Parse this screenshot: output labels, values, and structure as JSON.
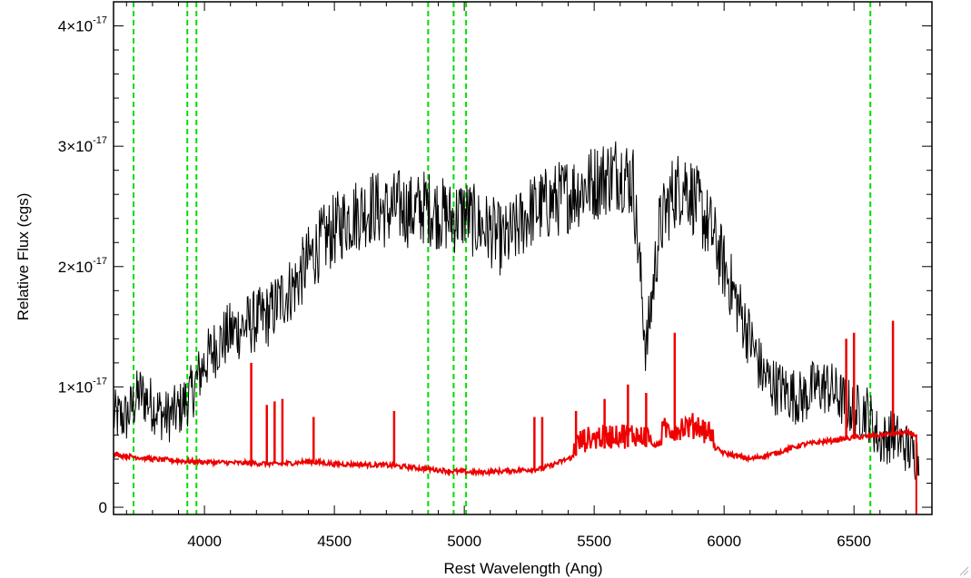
{
  "chart_data": {
    "type": "line",
    "title": "",
    "xlabel": "Rest Wavelength (Ang)",
    "ylabel": "Relative Flux (cgs)",
    "xlim": [
      3650,
      6800
    ],
    "ylim": [
      0,
      4.2e-17
    ],
    "x_ticks": [
      4000,
      4500,
      5000,
      5500,
      6000,
      6500
    ],
    "x_tick_labels": [
      "4000",
      "4500",
      "5000",
      "5500",
      "6000",
      "6500"
    ],
    "y_ticks": [
      0,
      1e-17,
      2e-17,
      3e-17,
      4e-17
    ],
    "y_tick_labels": [
      {
        "mantissa": "0",
        "exponent": ""
      },
      {
        "mantissa": "1×10",
        "exponent": "-17"
      },
      {
        "mantissa": "2×10",
        "exponent": "-17"
      },
      {
        "mantissa": "3×10",
        "exponent": "-17"
      },
      {
        "mantissa": "4×10",
        "exponent": "-17"
      }
    ],
    "grid": false,
    "reference_lines": {
      "color": "#00dd00",
      "style": "dashed",
      "x": [
        3727,
        3934,
        3969,
        4861,
        4959,
        5007,
        6563
      ]
    },
    "series": [
      {
        "color": "#000000",
        "noise": 0.32,
        "points": [
          [
            3650,
            0.75
          ],
          [
            3700,
            0.75
          ],
          [
            3750,
            0.95
          ],
          [
            3800,
            0.85
          ],
          [
            3850,
            0.75
          ],
          [
            3900,
            0.8
          ],
          [
            3950,
            0.95
          ],
          [
            4000,
            1.2
          ],
          [
            4050,
            1.35
          ],
          [
            4100,
            1.45
          ],
          [
            4150,
            1.5
          ],
          [
            4200,
            1.55
          ],
          [
            4250,
            1.6
          ],
          [
            4300,
            1.75
          ],
          [
            4350,
            1.85
          ],
          [
            4400,
            2.05
          ],
          [
            4450,
            2.2
          ],
          [
            4500,
            2.3
          ],
          [
            4550,
            2.4
          ],
          [
            4600,
            2.45
          ],
          [
            4650,
            2.5
          ],
          [
            4700,
            2.45
          ],
          [
            4750,
            2.5
          ],
          [
            4800,
            2.45
          ],
          [
            4850,
            2.5
          ],
          [
            4900,
            2.45
          ],
          [
            4950,
            2.4
          ],
          [
            5000,
            2.45
          ],
          [
            5050,
            2.35
          ],
          [
            5100,
            2.3
          ],
          [
            5150,
            2.2
          ],
          [
            5200,
            2.3
          ],
          [
            5250,
            2.45
          ],
          [
            5300,
            2.5
          ],
          [
            5350,
            2.55
          ],
          [
            5400,
            2.6
          ],
          [
            5450,
            2.65
          ],
          [
            5500,
            2.7
          ],
          [
            5550,
            2.75
          ],
          [
            5600,
            2.8
          ],
          [
            5650,
            2.7
          ],
          [
            5700,
            1.3
          ],
          [
            5750,
            2.3
          ],
          [
            5800,
            2.6
          ],
          [
            5850,
            2.7
          ],
          [
            5900,
            2.5
          ],
          [
            5950,
            2.3
          ],
          [
            6000,
            2.0
          ],
          [
            6050,
            1.7
          ],
          [
            6100,
            1.4
          ],
          [
            6150,
            1.1
          ],
          [
            6200,
            1.0
          ],
          [
            6250,
            0.95
          ],
          [
            6300,
            0.9
          ],
          [
            6350,
            1.0
          ],
          [
            6400,
            1.0
          ],
          [
            6450,
            0.9
          ],
          [
            6500,
            0.8
          ],
          [
            6550,
            0.8
          ],
          [
            6600,
            0.55
          ],
          [
            6650,
            0.6
          ],
          [
            6700,
            0.5
          ],
          [
            6750,
            0.4
          ]
        ]
      },
      {
        "color": "#ee0000",
        "noise": 0.02,
        "points": [
          [
            3650,
            0.44
          ],
          [
            3800,
            0.4
          ],
          [
            3950,
            0.38
          ],
          [
            4100,
            0.37
          ],
          [
            4300,
            0.36
          ],
          [
            4400,
            0.38
          ],
          [
            4500,
            0.36
          ],
          [
            4700,
            0.35
          ],
          [
            4850,
            0.32
          ],
          [
            4950,
            0.3
          ],
          [
            5050,
            0.29
          ],
          [
            5150,
            0.3
          ],
          [
            5300,
            0.32
          ],
          [
            5420,
            0.42
          ],
          [
            5500,
            0.48
          ],
          [
            5600,
            0.5
          ],
          [
            5700,
            0.5
          ],
          [
            5800,
            0.55
          ],
          [
            5900,
            0.58
          ],
          [
            6000,
            0.45
          ],
          [
            6100,
            0.4
          ],
          [
            6200,
            0.45
          ],
          [
            6300,
            0.52
          ],
          [
            6400,
            0.55
          ],
          [
            6500,
            0.58
          ],
          [
            6600,
            0.6
          ],
          [
            6700,
            0.62
          ],
          [
            6740,
            0.6
          ]
        ],
        "spikes": [
          [
            4180,
            1.2
          ],
          [
            4240,
            0.85
          ],
          [
            4270,
            0.88
          ],
          [
            4300,
            0.9
          ],
          [
            4420,
            0.75
          ],
          [
            4730,
            0.8
          ],
          [
            5270,
            0.75
          ],
          [
            5300,
            0.75
          ],
          [
            5430,
            0.8
          ],
          [
            5540,
            0.9
          ],
          [
            5630,
            1.02
          ],
          [
            5700,
            0.95
          ],
          [
            5810,
            1.45
          ],
          [
            6470,
            1.4
          ],
          [
            6500,
            1.45
          ],
          [
            6650,
            1.55
          ]
        ]
      }
    ]
  }
}
